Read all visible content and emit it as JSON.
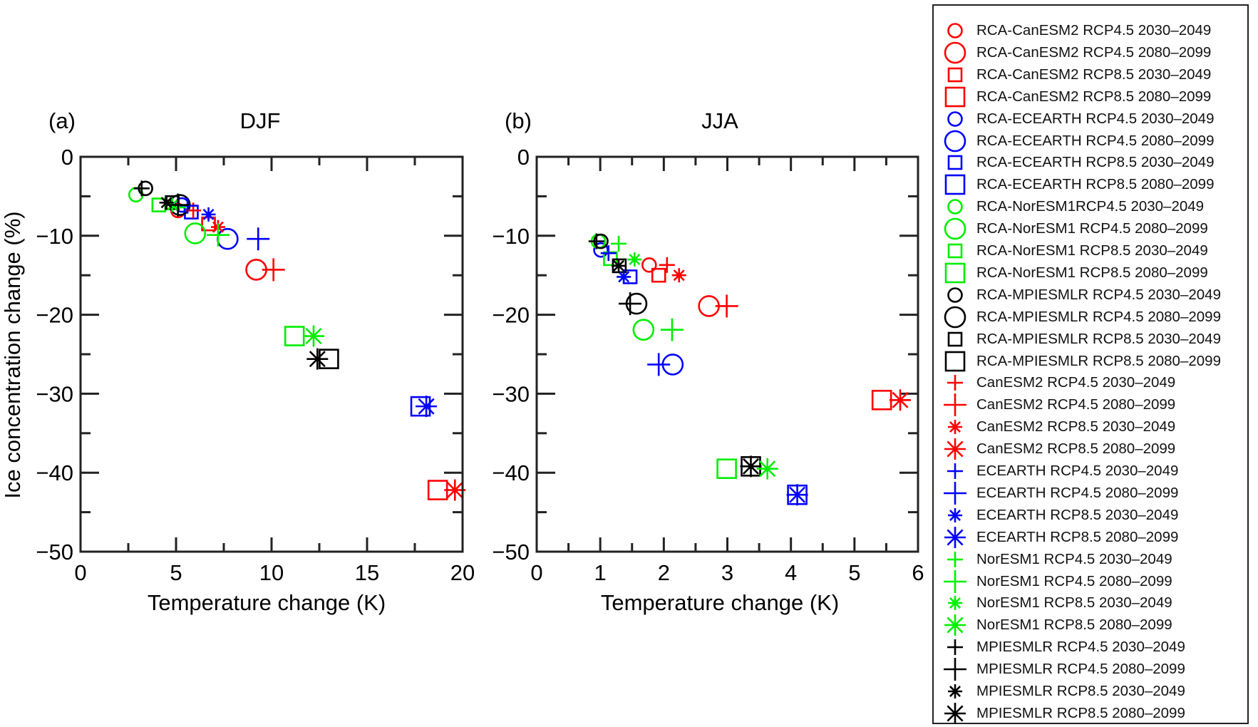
{
  "figure": {
    "ylabel": "Ice concentration change (%)"
  },
  "styles": {
    "colors": {
      "CanESM2": "#ff0000",
      "ECEARTH": "#0000ff",
      "NorESM1": "#00ee00",
      "MPIESMLR": "#000000"
    }
  },
  "legend": {
    "placement": "right",
    "entries": [
      {
        "label": "RCA-CanESM2 RCP4.5 2030–2049",
        "color": "#ff0000",
        "marker": "circle",
        "size": "small"
      },
      {
        "label": "RCA-CanESM2 RCP4.5 2080–2099",
        "color": "#ff0000",
        "marker": "circle",
        "size": "large"
      },
      {
        "label": "RCA-CanESM2 RCP8.5 2030–2049",
        "color": "#ff0000",
        "marker": "square",
        "size": "small"
      },
      {
        "label": "RCA-CanESM2 RCP8.5 2080–2099",
        "color": "#ff0000",
        "marker": "square",
        "size": "large"
      },
      {
        "label": "RCA-ECEARTH RCP4.5 2030–2049",
        "color": "#0000ff",
        "marker": "circle",
        "size": "small"
      },
      {
        "label": "RCA-ECEARTH RCP4.5 2080–2099",
        "color": "#0000ff",
        "marker": "circle",
        "size": "large"
      },
      {
        "label": "RCA-ECEARTH RCP8.5 2030–2049",
        "color": "#0000ff",
        "marker": "square",
        "size": "small"
      },
      {
        "label": "RCA-ECEARTH RCP8.5 2080–2099",
        "color": "#0000ff",
        "marker": "square",
        "size": "large"
      },
      {
        "label": "RCA-NorESM1RCP4.5 2030–2049",
        "color": "#00ee00",
        "marker": "circle",
        "size": "small"
      },
      {
        "label": "RCA-NorESM1 RCP4.5 2080–2099",
        "color": "#00ee00",
        "marker": "circle",
        "size": "large"
      },
      {
        "label": "RCA-NorESM1 RCP8.5 2030–2049",
        "color": "#00ee00",
        "marker": "square",
        "size": "small"
      },
      {
        "label": "RCA-NorESM1 RCP8.5 2080–2099",
        "color": "#00ee00",
        "marker": "square",
        "size": "large"
      },
      {
        "label": "RCA-MPIESMLR RCP4.5 2030–2049",
        "color": "#000000",
        "marker": "circle",
        "size": "small"
      },
      {
        "label": "RCA-MPIESMLR RCP4.5 2080–2099",
        "color": "#000000",
        "marker": "circle",
        "size": "large"
      },
      {
        "label": "RCA-MPIESMLR RCP8.5 2030–2049",
        "color": "#000000",
        "marker": "square",
        "size": "small"
      },
      {
        "label": "RCA-MPIESMLR RCP8.5 2080–2099",
        "color": "#000000",
        "marker": "square",
        "size": "large"
      },
      {
        "label": "CanESM2 RCP4.5 2030–2049",
        "color": "#ff0000",
        "marker": "plus",
        "size": "small"
      },
      {
        "label": "CanESM2 RCP4.5 2080–2099",
        "color": "#ff0000",
        "marker": "plus",
        "size": "large"
      },
      {
        "label": "CanESM2 RCP8.5 2030–2049",
        "color": "#ff0000",
        "marker": "asterisk",
        "size": "small"
      },
      {
        "label": "CanESM2 RCP8.5 2080–2099",
        "color": "#ff0000",
        "marker": "asterisk",
        "size": "large"
      },
      {
        "label": "ECEARTH RCP4.5 2030–2049",
        "color": "#0000ff",
        "marker": "plus",
        "size": "small"
      },
      {
        "label": "ECEARTH RCP4.5 2080–2099",
        "color": "#0000ff",
        "marker": "plus",
        "size": "large"
      },
      {
        "label": "ECEARTH RCP8.5 2030–2049",
        "color": "#0000ff",
        "marker": "asterisk",
        "size": "small"
      },
      {
        "label": "ECEARTH RCP8.5 2080–2099",
        "color": "#0000ff",
        "marker": "asterisk",
        "size": "large"
      },
      {
        "label": "NorESM1 RCP4.5 2030–2049",
        "color": "#00ee00",
        "marker": "plus",
        "size": "small"
      },
      {
        "label": "NorESM1 RCP4.5 2080–2099",
        "color": "#00ee00",
        "marker": "plus",
        "size": "large"
      },
      {
        "label": "NorESM1 RCP8.5 2030–2049",
        "color": "#00ee00",
        "marker": "asterisk",
        "size": "small"
      },
      {
        "label": "NorESM1 RCP8.5 2080–2099",
        "color": "#00ee00",
        "marker": "asterisk",
        "size": "large"
      },
      {
        "label": "MPIESMLR RCP4.5 2030–2049",
        "color": "#000000",
        "marker": "plus",
        "size": "small"
      },
      {
        "label": "MPIESMLR RCP4.5 2080–2099",
        "color": "#000000",
        "marker": "plus",
        "size": "large"
      },
      {
        "label": "MPIESMLR RCP8.5 2030–2049",
        "color": "#000000",
        "marker": "asterisk",
        "size": "small"
      },
      {
        "label": "MPIESMLR RCP8.5 2080–2099",
        "color": "#000000",
        "marker": "asterisk",
        "size": "large"
      }
    ]
  },
  "chart_data": [
    {
      "type": "scatter",
      "panel": "(a)",
      "title": "DJF",
      "xlabel": "Temperature change (K)",
      "ylabel": "Ice concentration change (%)",
      "xlim": [
        0,
        20
      ],
      "ylim": [
        -50,
        0
      ],
      "xticks": [
        0,
        5,
        10,
        15,
        20
      ],
      "xtick_labels": [
        "0",
        "5",
        "10",
        "15",
        "20"
      ],
      "yticks": [
        0,
        -10,
        -20,
        -30,
        -40,
        -50
      ],
      "ytick_labels": [
        "0",
        "−10",
        "−20",
        "−30",
        "−40",
        "−50"
      ],
      "x_minor_step": 2.5,
      "y_minor_step": 5,
      "grid": false,
      "legend": "right (shared)",
      "points": [
        {
          "series": "RCA-CanESM2 RCP4.5 2030–2049",
          "x": 5.1,
          "y": -6.8
        },
        {
          "series": "RCA-CanESM2 RCP4.5 2080–2099",
          "x": 9.2,
          "y": -14.3
        },
        {
          "series": "RCA-CanESM2 RCP8.5 2030–2049",
          "x": 6.7,
          "y": -8.5
        },
        {
          "series": "RCA-CanESM2 RCP8.5 2080–2099",
          "x": 18.7,
          "y": -42.2
        },
        {
          "series": "RCA-ECEARTH RCP4.5 2030–2049",
          "x": 5.3,
          "y": -6.1
        },
        {
          "series": "RCA-ECEARTH RCP4.5 2080–2099",
          "x": 7.7,
          "y": -10.4
        },
        {
          "series": "RCA-ECEARTH RCP8.5 2030–2049",
          "x": 5.8,
          "y": -7.0
        },
        {
          "series": "RCA-ECEARTH RCP8.5 2080–2099",
          "x": 17.8,
          "y": -31.6
        },
        {
          "series": "RCA-NorESM1RCP4.5 2030–2049",
          "x": 2.9,
          "y": -4.8
        },
        {
          "series": "RCA-NorESM1 RCP4.5 2080–2099",
          "x": 6.0,
          "y": -9.7
        },
        {
          "series": "RCA-NorESM1 RCP8.5 2030–2049",
          "x": 4.1,
          "y": -6.1
        },
        {
          "series": "RCA-NorESM1 RCP8.5 2080–2099",
          "x": 11.2,
          "y": -22.7
        },
        {
          "series": "RCA-MPIESMLR RCP4.5 2030–2049",
          "x": 3.4,
          "y": -4.0
        },
        {
          "series": "RCA-MPIESMLR RCP4.5 2080–2099",
          "x": 5.2,
          "y": -6.1
        },
        {
          "series": "RCA-MPIESMLR RCP8.5 2030–2049",
          "x": 4.8,
          "y": -5.8
        },
        {
          "series": "RCA-MPIESMLR RCP8.5 2080–2099",
          "x": 13.0,
          "y": -25.6
        },
        {
          "series": "CanESM2 RCP4.5 2030–2049",
          "x": 5.9,
          "y": -6.8
        },
        {
          "series": "CanESM2 RCP4.5 2080–2099",
          "x": 10.1,
          "y": -14.3
        },
        {
          "series": "CanESM2 RCP8.5 2030–2049",
          "x": 7.2,
          "y": -8.9
        },
        {
          "series": "CanESM2 RCP8.5 2080–2099",
          "x": 19.6,
          "y": -42.2
        },
        {
          "series": "ECEARTH RCP4.5 2030–2049",
          "x": 5.6,
          "y": -6.2
        },
        {
          "series": "ECEARTH RCP4.5 2080–2099",
          "x": 9.3,
          "y": -10.4
        },
        {
          "series": "ECEARTH RCP8.5 2030–2049",
          "x": 6.7,
          "y": -7.3
        },
        {
          "series": "ECEARTH RCP8.5 2080–2099",
          "x": 18.1,
          "y": -31.6
        },
        {
          "series": "NorESM1 RCP4.5 2030–2049",
          "x": 5.1,
          "y": -6.4
        },
        {
          "series": "NorESM1 RCP4.5 2080–2099",
          "x": 7.2,
          "y": -9.9
        },
        {
          "series": "NorESM1 RCP8.5 2030–2049",
          "x": 4.8,
          "y": -6.1
        },
        {
          "series": "NorESM1 RCP8.5 2080–2099",
          "x": 12.2,
          "y": -22.7
        },
        {
          "series": "MPIESMLR RCP4.5 2030–2049",
          "x": 3.2,
          "y": -4.0
        },
        {
          "series": "MPIESMLR RCP4.5 2080–2099",
          "x": 5.1,
          "y": -6.1
        },
        {
          "series": "MPIESMLR RCP8.5 2030–2049",
          "x": 4.5,
          "y": -5.8
        },
        {
          "series": "MPIESMLR RCP8.5 2080–2099",
          "x": 12.4,
          "y": -25.6
        }
      ]
    },
    {
      "type": "scatter",
      "panel": "(b)",
      "title": "JJA",
      "xlabel": "Temperature change (K)",
      "ylabel": "",
      "xlim": [
        0,
        6
      ],
      "ylim": [
        -50,
        0
      ],
      "xticks": [
        0,
        1,
        2,
        3,
        4,
        5,
        6
      ],
      "xtick_labels": [
        "0",
        "1",
        "2",
        "3",
        "4",
        "5",
        "6"
      ],
      "yticks": [
        0,
        -10,
        -20,
        -30,
        -40,
        -50
      ],
      "ytick_labels": [
        "0",
        "−10",
        "−20",
        "−30",
        "−40",
        "−50"
      ],
      "x_minor_step": 0.5,
      "y_minor_step": 5,
      "grid": false,
      "legend": "right (shared)",
      "points": [
        {
          "series": "RCA-CanESM2 RCP4.5 2030–2049",
          "x": 1.77,
          "y": -13.7
        },
        {
          "series": "RCA-CanESM2 RCP4.5 2080–2099",
          "x": 2.71,
          "y": -18.9
        },
        {
          "series": "RCA-CanESM2 RCP8.5 2030–2049",
          "x": 1.92,
          "y": -15.0
        },
        {
          "series": "RCA-CanESM2 RCP8.5 2080–2099",
          "x": 5.43,
          "y": -30.8
        },
        {
          "series": "RCA-ECEARTH RCP4.5 2030–2049",
          "x": 1.01,
          "y": -11.8
        },
        {
          "series": "RCA-ECEARTH RCP4.5 2080–2099",
          "x": 2.14,
          "y": -26.3
        },
        {
          "series": "RCA-ECEARTH RCP8.5 2030–2049",
          "x": 1.47,
          "y": -15.2
        },
        {
          "series": "RCA-ECEARTH RCP8.5 2080–2099",
          "x": 4.1,
          "y": -42.8
        },
        {
          "series": "RCA-NorESM1RCP4.5 2030–2049",
          "x": 0.97,
          "y": -10.7
        },
        {
          "series": "RCA-NorESM1 RCP4.5 2080–2099",
          "x": 1.68,
          "y": -21.9
        },
        {
          "series": "RCA-NorESM1 RCP8.5 2030–2049",
          "x": 1.16,
          "y": -12.9
        },
        {
          "series": "RCA-NorESM1 RCP8.5 2080–2099",
          "x": 2.99,
          "y": -39.5
        },
        {
          "series": "RCA-MPIESMLR RCP4.5 2030–2049",
          "x": 1.01,
          "y": -10.7
        },
        {
          "series": "RCA-MPIESMLR RCP4.5 2080–2099",
          "x": 1.57,
          "y": -18.6
        },
        {
          "series": "RCA-MPIESMLR RCP8.5 2030–2049",
          "x": 1.3,
          "y": -13.8
        },
        {
          "series": "RCA-MPIESMLR RCP8.5 2080–2099",
          "x": 3.37,
          "y": -39.2
        },
        {
          "series": "CanESM2 RCP4.5 2030–2049",
          "x": 2.05,
          "y": -13.7
        },
        {
          "series": "CanESM2 RCP4.5 2080–2099",
          "x": 2.99,
          "y": -18.9
        },
        {
          "series": "CanESM2 RCP8.5 2030–2049",
          "x": 2.24,
          "y": -15.0
        },
        {
          "series": "CanESM2 RCP8.5 2080–2099",
          "x": 5.72,
          "y": -30.8
        },
        {
          "series": "ECEARTH RCP4.5 2030–2049",
          "x": 1.13,
          "y": -12.2
        },
        {
          "series": "ECEARTH RCP4.5 2080–2099",
          "x": 1.92,
          "y": -26.3
        },
        {
          "series": "ECEARTH RCP8.5 2030–2049",
          "x": 1.37,
          "y": -15.2
        },
        {
          "series": "ECEARTH RCP8.5 2080–2099",
          "x": 4.1,
          "y": -42.8
        },
        {
          "series": "NorESM1 RCP4.5 2030–2049",
          "x": 1.29,
          "y": -11.0
        },
        {
          "series": "NorESM1 RCP4.5 2080–2099",
          "x": 2.13,
          "y": -21.9
        },
        {
          "series": "NorESM1 RCP8.5 2030–2049",
          "x": 1.54,
          "y": -13.0
        },
        {
          "series": "NorESM1 RCP8.5 2080–2099",
          "x": 3.63,
          "y": -39.5
        },
        {
          "series": "MPIESMLR RCP4.5 2030–2049",
          "x": 0.94,
          "y": -10.7
        },
        {
          "series": "MPIESMLR RCP4.5 2080–2099",
          "x": 1.47,
          "y": -18.6
        },
        {
          "series": "MPIESMLR RCP8.5 2030–2049",
          "x": 1.29,
          "y": -13.8
        },
        {
          "series": "MPIESMLR RCP8.5 2080–2099",
          "x": 3.37,
          "y": -39.2
        }
      ]
    }
  ]
}
